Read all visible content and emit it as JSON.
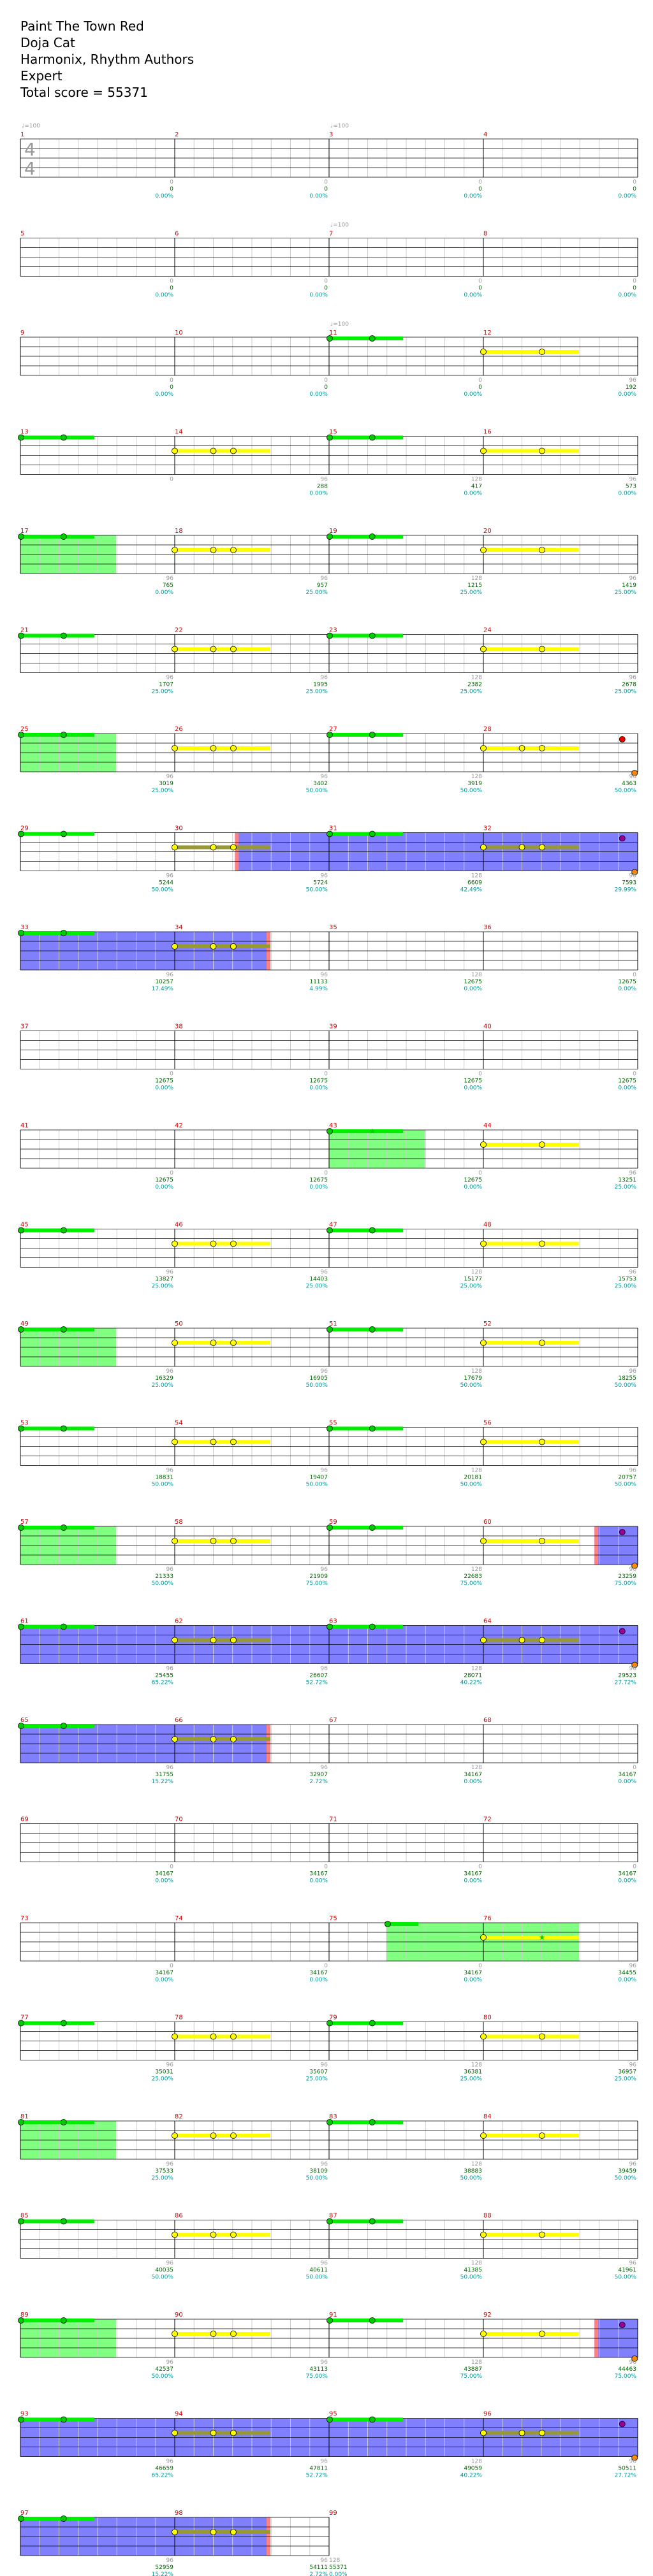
{
  "song": {
    "title": "Paint The Town Red",
    "artist": "Doja Cat",
    "charter": "Harmonix, Rhythm Authors",
    "difficulty": "Expert",
    "total_score_text": "Total score = 55371"
  },
  "time_signature": {
    "top": "4",
    "bottom": "4"
  },
  "tempo_markers": [
    {
      "measure": 1,
      "beat": 0,
      "text": "♩=100"
    },
    {
      "measure": 3,
      "beat": 0,
      "text": "♩=100"
    },
    {
      "measure": 7,
      "beat": 0,
      "text": "♩=100"
    },
    {
      "measure": 11,
      "beat": 0,
      "text": "♩=100"
    }
  ],
  "colors": {
    "staff_line": "#000000",
    "grid_line": "#cccccc",
    "measure_number": "#cc0000",
    "score_text": "#006600",
    "percent_text": "#009999",
    "gray_text": "#999999",
    "overdrive_fill": "#8080ff",
    "overdrive_edge": "#ff8080",
    "activation_fill": "#80ff80",
    "green_note": "#00cc00",
    "yellow_note": "#ffff00",
    "sustain_green": "#00ee00",
    "sustain_yellow": "#ffff00",
    "sustain_olive": "#999933",
    "red_note": "#ee0000",
    "orange_note": "#ff8800",
    "purple_note": "#990099"
  },
  "chart_data": {
    "type": "table",
    "measures_per_row": 4,
    "measures": [
      {
        "n": 1,
        "top": "0",
        "score": "0",
        "pct": "0.00%",
        "pattern": "none"
      },
      {
        "n": 2,
        "top": "0",
        "score": "0",
        "pct": "0.00%",
        "pattern": "none"
      },
      {
        "n": 3,
        "top": "0",
        "score": "0",
        "pct": "0.00%",
        "pattern": "none"
      },
      {
        "n": 4,
        "top": "0",
        "score": "0",
        "pct": "0.00%",
        "pattern": "none"
      },
      {
        "n": 5,
        "top": "0",
        "score": "0",
        "pct": "0.00%",
        "pattern": "none"
      },
      {
        "n": 6,
        "top": "0",
        "score": "0",
        "pct": "0.00%",
        "pattern": "none"
      },
      {
        "n": 7,
        "top": "0",
        "score": "0",
        "pct": "0.00%",
        "pattern": "none"
      },
      {
        "n": 8,
        "top": "0",
        "score": "0",
        "pct": "0.00%",
        "pattern": "none"
      },
      {
        "n": 9,
        "top": "0",
        "score": "0",
        "pct": "0.00%",
        "pattern": "none"
      },
      {
        "n": 10,
        "top": "0",
        "score": "0",
        "pct": "0.00%",
        "pattern": "none"
      },
      {
        "n": 11,
        "top": "0",
        "score": "0",
        "pct": "0.00%",
        "pattern": "green"
      },
      {
        "n": 12,
        "top": "96",
        "score": "192",
        "pct": "0.00%",
        "pattern": "yellow2"
      },
      {
        "n": 13,
        "top": "0",
        "score": "",
        "pct": "",
        "pattern": "green"
      },
      {
        "n": 14,
        "top": "96",
        "score": "288",
        "pct": "0.00%",
        "pattern": "yellow3"
      },
      {
        "n": 15,
        "top": "128",
        "score": "417",
        "pct": "0.00%",
        "pattern": "green"
      },
      {
        "n": 16,
        "top": "96",
        "score": "573",
        "pct": "0.00%",
        "pattern": "yellow2"
      },
      {
        "n": 17,
        "top": "96",
        "score": "765",
        "pct": "0.00%",
        "pattern": "green_act"
      },
      {
        "n": 18,
        "top": "96",
        "score": "957",
        "pct": "25.00%",
        "pattern": "yellow3"
      },
      {
        "n": 19,
        "top": "128",
        "score": "1215",
        "pct": "25.00%",
        "pattern": "green"
      },
      {
        "n": 20,
        "top": "96",
        "score": "1419",
        "pct": "25.00%",
        "pattern": "yellow2"
      },
      {
        "n": 21,
        "top": "96",
        "score": "1707",
        "pct": "25.00%",
        "pattern": "green"
      },
      {
        "n": 22,
        "top": "96",
        "score": "1995",
        "pct": "25.00%",
        "pattern": "yellow3"
      },
      {
        "n": 23,
        "top": "128",
        "score": "2382",
        "pct": "25.00%",
        "pattern": "green"
      },
      {
        "n": 24,
        "top": "96",
        "score": "2678",
        "pct": "25.00%",
        "pattern": "yellow2"
      },
      {
        "n": 25,
        "top": "96",
        "score": "3019",
        "pct": "25.00%",
        "pattern": "green_act"
      },
      {
        "n": 26,
        "top": "96",
        "score": "3402",
        "pct": "50.00%",
        "pattern": "yellow3"
      },
      {
        "n": 27,
        "top": "128",
        "score": "3919",
        "pct": "50.00%",
        "pattern": "green"
      },
      {
        "n": 28,
        "top": "96",
        "score": "4363",
        "pct": "50.00%",
        "pattern": "yellow3_red"
      },
      {
        "n": 29,
        "top": "96",
        "score": "5244",
        "pct": "50.00%",
        "pattern": "green"
      },
      {
        "n": 30,
        "top": "96",
        "score": "5724",
        "pct": "50.00%",
        "pattern": "yellow3_od_end"
      },
      {
        "n": 31,
        "top": "128",
        "score": "6609",
        "pct": "42.49%",
        "pattern": "green_od"
      },
      {
        "n": 32,
        "top": "96",
        "score": "7593",
        "pct": "29.99%",
        "pattern": "yellow3_od_purple"
      },
      {
        "n": 33,
        "top": "96",
        "score": "10257",
        "pct": "17.49%",
        "pattern": "green_od"
      },
      {
        "n": 34,
        "top": "96",
        "score": "11133",
        "pct": "4.99%",
        "pattern": "yellow3_od_end"
      },
      {
        "n": 35,
        "top": "128",
        "score": "12675",
        "pct": "0.00%",
        "pattern": "none"
      },
      {
        "n": 36,
        "top": "0",
        "score": "12675",
        "pct": "0.00%",
        "pattern": "none"
      },
      {
        "n": 37,
        "top": "0",
        "score": "12675",
        "pct": "0.00%",
        "pattern": "none"
      },
      {
        "n": 38,
        "top": "0",
        "score": "12675",
        "pct": "0.00%",
        "pattern": "none"
      },
      {
        "n": 39,
        "top": "0",
        "score": "12675",
        "pct": "0.00%",
        "pattern": "none"
      },
      {
        "n": 40,
        "top": "0",
        "score": "12675",
        "pct": "0.00%",
        "pattern": "none"
      },
      {
        "n": 41,
        "top": "0",
        "score": "12675",
        "pct": "0.00%",
        "pattern": "none"
      },
      {
        "n": 42,
        "top": "0",
        "score": "12675",
        "pct": "0.00%",
        "pattern": "none"
      },
      {
        "n": 43,
        "top": "0",
        "score": "12675",
        "pct": "0.00%",
        "pattern": "green_act_star"
      },
      {
        "n": 44,
        "top": "96",
        "score": "13251",
        "pct": "25.00%",
        "pattern": "yellow2"
      },
      {
        "n": 45,
        "top": "96",
        "score": "13827",
        "pct": "25.00%",
        "pattern": "green"
      },
      {
        "n": 46,
        "top": "96",
        "score": "14403",
        "pct": "25.00%",
        "pattern": "yellow3"
      },
      {
        "n": 47,
        "top": "128",
        "score": "15177",
        "pct": "25.00%",
        "pattern": "green"
      },
      {
        "n": 48,
        "top": "96",
        "score": "15753",
        "pct": "25.00%",
        "pattern": "yellow2"
      },
      {
        "n": 49,
        "top": "96",
        "score": "16329",
        "pct": "25.00%",
        "pattern": "green_act"
      },
      {
        "n": 50,
        "top": "96",
        "score": "16905",
        "pct": "50.00%",
        "pattern": "yellow3"
      },
      {
        "n": 51,
        "top": "128",
        "score": "17679",
        "pct": "50.00%",
        "pattern": "green"
      },
      {
        "n": 52,
        "top": "96",
        "score": "18255",
        "pct": "50.00%",
        "pattern": "yellow2"
      },
      {
        "n": 53,
        "top": "96",
        "score": "18831",
        "pct": "50.00%",
        "pattern": "green"
      },
      {
        "n": 54,
        "top": "96",
        "score": "19407",
        "pct": "50.00%",
        "pattern": "yellow3"
      },
      {
        "n": 55,
        "top": "128",
        "score": "20181",
        "pct": "50.00%",
        "pattern": "green"
      },
      {
        "n": 56,
        "top": "96",
        "score": "20757",
        "pct": "50.00%",
        "pattern": "yellow2"
      },
      {
        "n": 57,
        "top": "96",
        "score": "21333",
        "pct": "50.00%",
        "pattern": "green_act"
      },
      {
        "n": 58,
        "top": "96",
        "score": "21909",
        "pct": "75.00%",
        "pattern": "yellow3"
      },
      {
        "n": 59,
        "top": "128",
        "score": "22683",
        "pct": "75.00%",
        "pattern": "green"
      },
      {
        "n": 60,
        "top": "96",
        "score": "23259",
        "pct": "75.00%",
        "pattern": "yellow2_od_start_purple"
      },
      {
        "n": 61,
        "top": "96",
        "score": "25455",
        "pct": "65.22%",
        "pattern": "green_od"
      },
      {
        "n": 62,
        "top": "96",
        "score": "26607",
        "pct": "52.72%",
        "pattern": "yellow3_od"
      },
      {
        "n": 63,
        "top": "128",
        "score": "28071",
        "pct": "40.22%",
        "pattern": "green_od"
      },
      {
        "n": 64,
        "top": "96",
        "score": "29523",
        "pct": "27.72%",
        "pattern": "yellow3_od_purple"
      },
      {
        "n": 65,
        "top": "96",
        "score": "31755",
        "pct": "15.22%",
        "pattern": "green_od"
      },
      {
        "n": 66,
        "top": "96",
        "score": "32907",
        "pct": "2.72%",
        "pattern": "yellow3_od_end"
      },
      {
        "n": 67,
        "top": "128",
        "score": "34167",
        "pct": "0.00%",
        "pattern": "none"
      },
      {
        "n": 68,
        "top": "0",
        "score": "34167",
        "pct": "0.00%",
        "pattern": "none"
      },
      {
        "n": 69,
        "top": "0",
        "score": "34167",
        "pct": "0.00%",
        "pattern": "none"
      },
      {
        "n": 70,
        "top": "0",
        "score": "34167",
        "pct": "0.00%",
        "pattern": "none"
      },
      {
        "n": 71,
        "top": "0",
        "score": "34167",
        "pct": "0.00%",
        "pattern": "none"
      },
      {
        "n": 72,
        "top": "0",
        "score": "34167",
        "pct": "0.00%",
        "pattern": "none"
      },
      {
        "n": 73,
        "top": "0",
        "score": "34167",
        "pct": "0.00%",
        "pattern": "none"
      },
      {
        "n": 74,
        "top": "0",
        "score": "34167",
        "pct": "0.00%",
        "pattern": "none"
      },
      {
        "n": 75,
        "top": "0",
        "score": "34167",
        "pct": "0.00%",
        "pattern": "green_late_act"
      },
      {
        "n": 76,
        "top": "96",
        "score": "34455",
        "pct": "0.00%",
        "pattern": "yellow_act_star"
      },
      {
        "n": 77,
        "top": "96",
        "score": "35031",
        "pct": "25.00%",
        "pattern": "green"
      },
      {
        "n": 78,
        "top": "96",
        "score": "35607",
        "pct": "25.00%",
        "pattern": "yellow3"
      },
      {
        "n": 79,
        "top": "128",
        "score": "36381",
        "pct": "25.00%",
        "pattern": "green"
      },
      {
        "n": 80,
        "top": "96",
        "score": "36957",
        "pct": "25.00%",
        "pattern": "yellow2"
      },
      {
        "n": 81,
        "top": "96",
        "score": "37533",
        "pct": "25.00%",
        "pattern": "green_act"
      },
      {
        "n": 82,
        "top": "96",
        "score": "38109",
        "pct": "50.00%",
        "pattern": "yellow3"
      },
      {
        "n": 83,
        "top": "128",
        "score": "38883",
        "pct": "50.00%",
        "pattern": "green"
      },
      {
        "n": 84,
        "top": "96",
        "score": "39459",
        "pct": "50.00%",
        "pattern": "yellow2"
      },
      {
        "n": 85,
        "top": "96",
        "score": "40035",
        "pct": "50.00%",
        "pattern": "green"
      },
      {
        "n": 86,
        "top": "96",
        "score": "40611",
        "pct": "50.00%",
        "pattern": "yellow3"
      },
      {
        "n": 87,
        "top": "128",
        "score": "41385",
        "pct": "50.00%",
        "pattern": "green"
      },
      {
        "n": 88,
        "top": "96",
        "score": "41961",
        "pct": "50.00%",
        "pattern": "yellow2"
      },
      {
        "n": 89,
        "top": "96",
        "score": "42537",
        "pct": "50.00%",
        "pattern": "green_act"
      },
      {
        "n": 90,
        "top": "96",
        "score": "43113",
        "pct": "75.00%",
        "pattern": "yellow3"
      },
      {
        "n": 91,
        "top": "128",
        "score": "43887",
        "pct": "75.00%",
        "pattern": "green"
      },
      {
        "n": 92,
        "top": "96",
        "score": "44463",
        "pct": "75.00%",
        "pattern": "yellow2_od_start_purple"
      },
      {
        "n": 93,
        "top": "96",
        "score": "46659",
        "pct": "65.22%",
        "pattern": "green_od"
      },
      {
        "n": 94,
        "top": "96",
        "score": "47811",
        "pct": "52.72%",
        "pattern": "yellow3_od"
      },
      {
        "n": 95,
        "top": "128",
        "score": "49059",
        "pct": "40.22%",
        "pattern": "green_od"
      },
      {
        "n": 96,
        "top": "96",
        "score": "50511",
        "pct": "27.72%",
        "pattern": "yellow3_od_purple"
      },
      {
        "n": 97,
        "top": "96",
        "score": "52959",
        "pct": "15.22%",
        "pattern": "green_od"
      },
      {
        "n": 98,
        "top": "96",
        "score": "54111",
        "pct": "2.72%",
        "pattern": "yellow3_od_end"
      },
      {
        "n": 99,
        "top": "128",
        "score": "55371",
        "pct": "0.00%",
        "pattern": "end"
      }
    ]
  }
}
